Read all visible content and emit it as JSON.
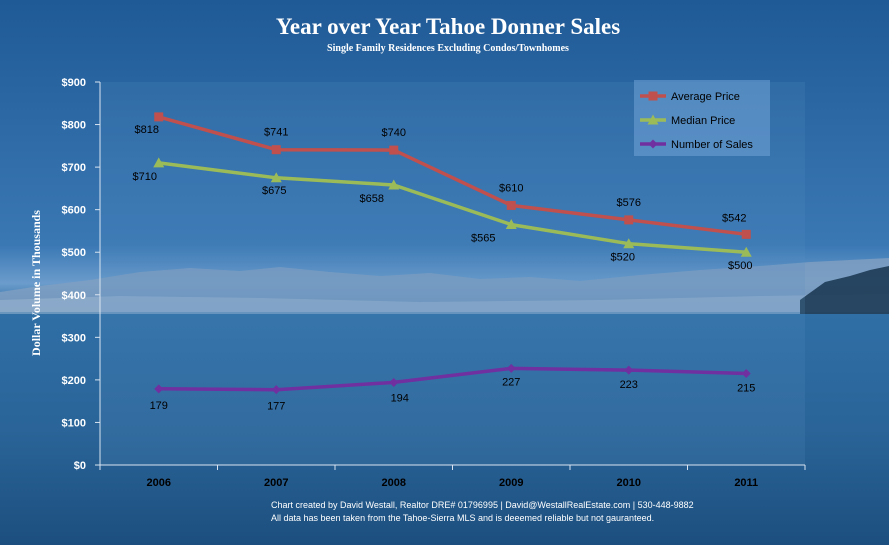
{
  "chart_data": {
    "type": "line",
    "title": "Year over Year Tahoe Donner Sales",
    "subtitle": "Single Family Residences Excluding Condos/Townhomes",
    "ylabel": "Dollar Volume in Thousands",
    "ylim": [
      0,
      900
    ],
    "ytick_labels": [
      "$0",
      "$100",
      "$200",
      "$300",
      "$400",
      "$500",
      "$600",
      "$700",
      "$800",
      "$900"
    ],
    "categories": [
      "2006",
      "2007",
      "2008",
      "2009",
      "2010",
      "2011"
    ],
    "legend_position": "top-right",
    "series": [
      {
        "name": "Average Price",
        "values": [
          818,
          741,
          740,
          610,
          576,
          542
        ],
        "labels": [
          "$818",
          "$741",
          "$740",
          "$610",
          "$576",
          "$542"
        ],
        "color": "#c0504d",
        "marker": "square"
      },
      {
        "name": "Median Price",
        "values": [
          710,
          675,
          658,
          565,
          520,
          500
        ],
        "labels": [
          "$710",
          "$675",
          "$658",
          "$565",
          "$520",
          "$500"
        ],
        "color": "#9bbb59",
        "marker": "triangle"
      },
      {
        "name": "Number of Sales",
        "values": [
          179,
          177,
          194,
          227,
          223,
          215
        ],
        "labels": [
          "179",
          "177",
          "194",
          "227",
          "223",
          "215"
        ],
        "color": "#7030a0",
        "marker": "diamond"
      }
    ],
    "footer_lines": [
      "Chart created by David Westall, Realtor DRE# 01796995 | David@WestallRealEstate.com | 530-448-9882",
      "All data has been taken from the Tahoe-Sierra MLS and is deeemed reliable but not gauranteed."
    ]
  }
}
